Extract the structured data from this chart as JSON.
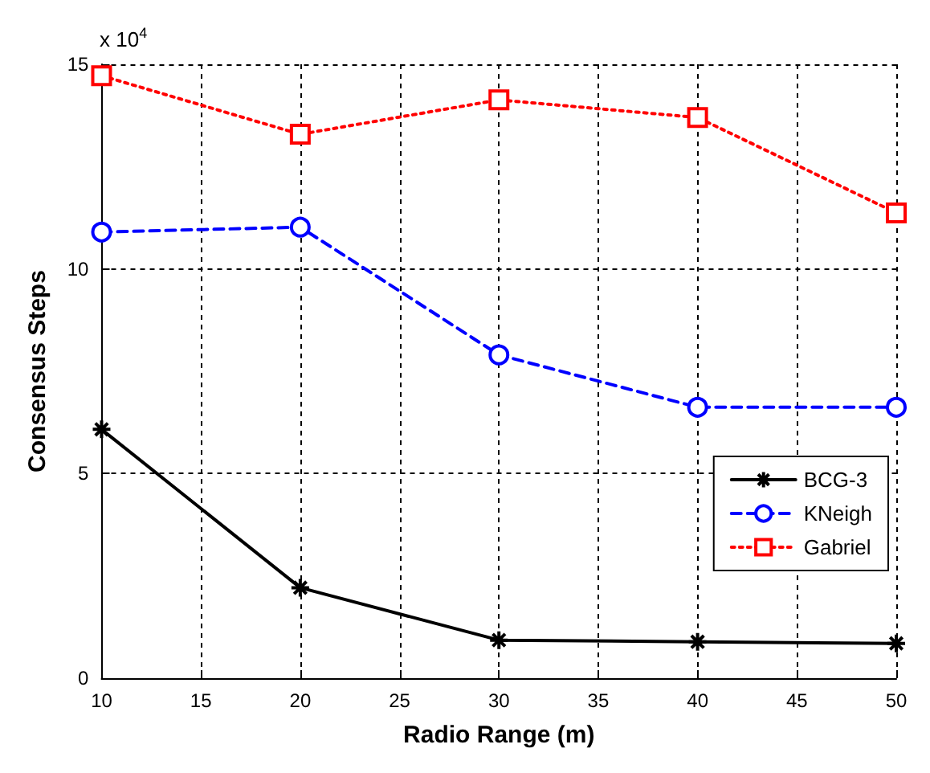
{
  "chart_data": {
    "type": "line",
    "xlabel": "Radio Range (m)",
    "ylabel": "Consensus Steps",
    "annotations": [
      "x 10$^{4}$"
    ],
    "x": [
      10,
      20,
      30,
      40,
      50
    ],
    "series": [
      {
        "name": "BCG-3",
        "color": "#000000",
        "marker": "cross",
        "line_style": "solid",
        "values": [
          6.08,
          2.21,
          0.93,
          0.89,
          0.85
        ]
      },
      {
        "name": "KNeigh",
        "color": "#0000ff",
        "marker": "circle",
        "line_style": "dashed",
        "values": [
          10.9,
          11.02,
          7.9,
          6.62,
          6.62
        ]
      },
      {
        "name": "Gabriel",
        "color": "#ff0000",
        "marker": "square",
        "line_style": "dotted",
        "values": [
          14.72,
          13.29,
          14.13,
          13.7,
          11.37
        ]
      }
    ],
    "xlim": [
      10,
      50
    ],
    "xticks": [
      10,
      15,
      20,
      25,
      30,
      35,
      40,
      45,
      50
    ],
    "ylim": [
      0,
      15
    ],
    "yticks": [
      0,
      5,
      10,
      15
    ],
    "grid": true,
    "legend": "bottom right"
  }
}
